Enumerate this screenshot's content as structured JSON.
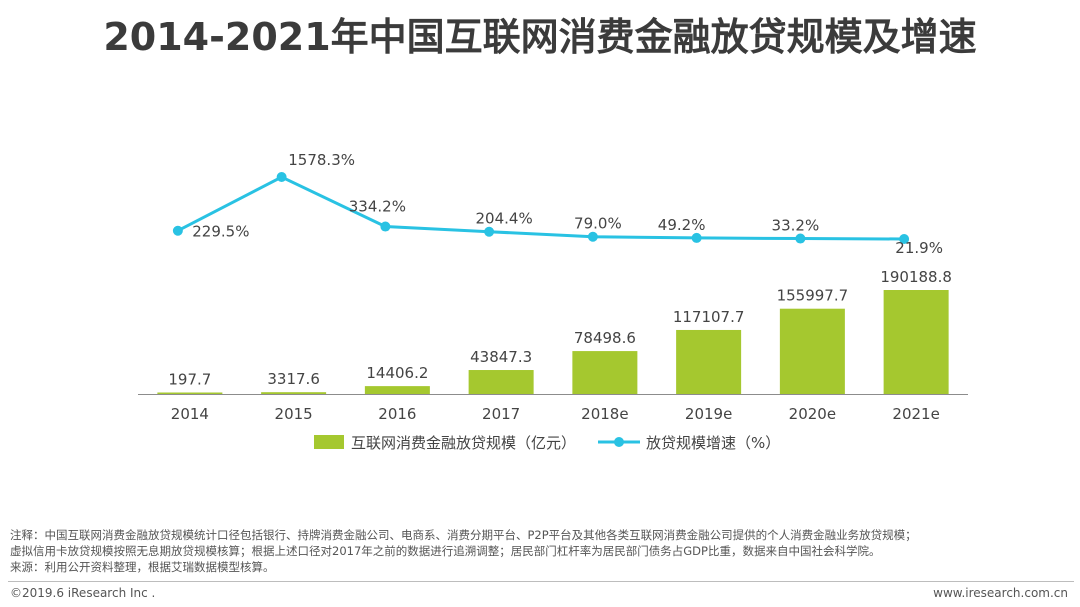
{
  "title": "2014-2021年中国互联网消费金融放贷规模及增速",
  "chart_data": {
    "type": "bar",
    "title": "2014-2021年中国互联网消费金融放贷规模及增速",
    "categories": [
      "2014",
      "2015",
      "2016",
      "2017",
      "2018e",
      "2019e",
      "2020e",
      "2021e"
    ],
    "series": [
      {
        "name": "互联网消费金融放贷规模（亿元）",
        "type": "bar",
        "color": "#a5c82f",
        "values": [
          197.7,
          3317.6,
          14406.2,
          43847.3,
          78498.6,
          117107.7,
          155997.7,
          190188.8
        ],
        "labels": [
          "197.7",
          "3317.6",
          "14406.2",
          "43847.3",
          "78498.6",
          "117107.7",
          "155997.7",
          "190188.8"
        ]
      },
      {
        "name": "放贷规模增速（%）",
        "type": "line",
        "color": "#29c2e3",
        "values": [
          229.5,
          1578.3,
          334.2,
          204.4,
          79.0,
          49.2,
          33.2,
          21.9
        ],
        "labels": [
          "229.5%",
          "1578.3%",
          "334.2%",
          "204.4%",
          "79.0%",
          "49.2%",
          "33.2%",
          "21.9%"
        ]
      }
    ],
    "legend_position": "bottom"
  },
  "notes": [
    "注释：中国互联网消费金融放贷规模统计口径包括银行、持牌消费金融公司、电商系、消费分期平台、P2P平台及其他各类互联网消费金融公司提供的个人消费金融业务放贷规模；",
    "虚拟信用卡放贷规模按照无息期放贷规模核算；根据上述口径对2017年之前的数据进行追溯调整；居民部门杠杆率为居民部门债务占GDP比重，数据来自中国社会科学院。",
    "来源：利用公开资料整理，根据艾瑞数据模型核算。"
  ],
  "footer": {
    "copyright": "©2019.6 iResearch Inc .",
    "website": "www.iresearch.com.cn"
  }
}
